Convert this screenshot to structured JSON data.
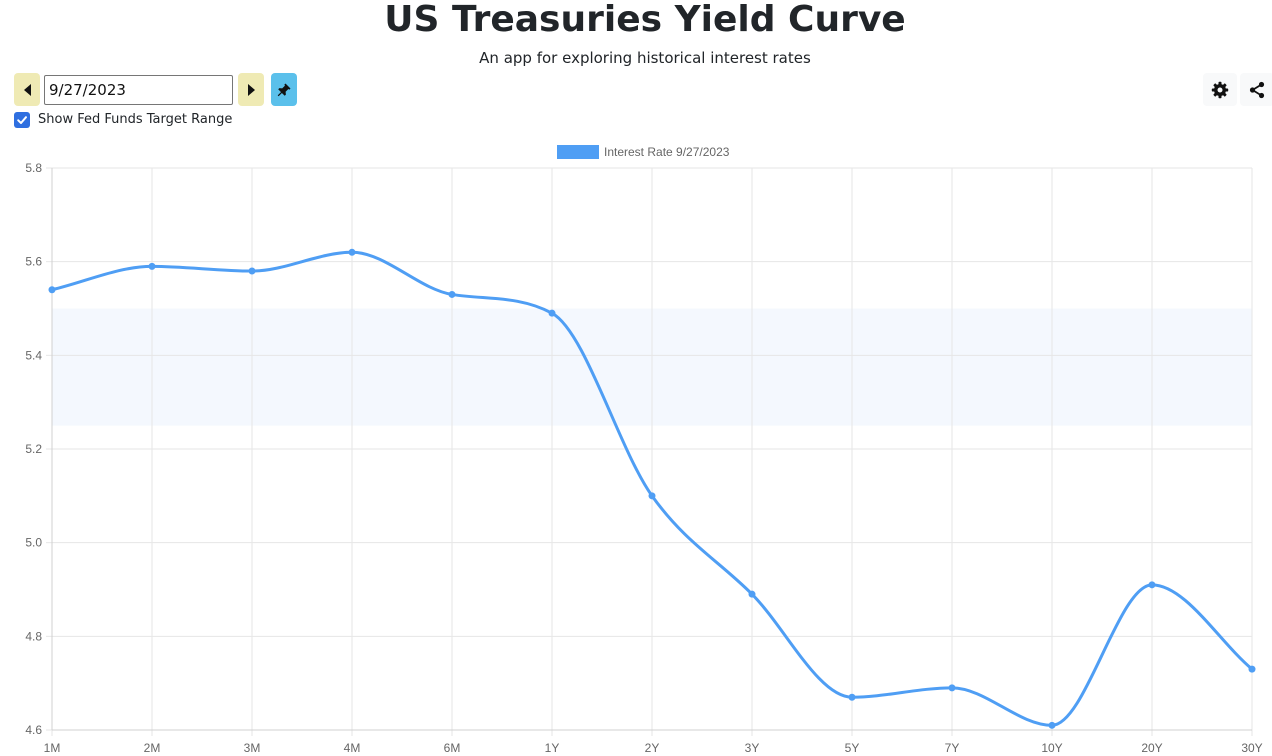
{
  "header": {
    "title": "US Treasuries Yield Curve",
    "subtitle": "An app for exploring historical interest rates"
  },
  "toolbar": {
    "date_value": "9/27/2023",
    "prev_icon": "caret-left-icon",
    "next_icon": "caret-right-icon",
    "pin_icon": "pin-icon",
    "settings_icon": "gear-icon",
    "share_icon": "share-icon",
    "show_fed_funds_label": "Show Fed Funds Target Range",
    "show_fed_funds_checked": true
  },
  "colors": {
    "line": "#4f9ef4",
    "band": "#f4f8fe",
    "nav_button": "#efeab4",
    "pin_button": "#5bc0eb",
    "checkbox": "#2f6fe0"
  },
  "chart_data": {
    "type": "line",
    "title": "",
    "legend": [
      "Interest Rate 9/27/2023"
    ],
    "legend_position": "top-center",
    "categories": [
      "1M",
      "2M",
      "3M",
      "4M",
      "6M",
      "1Y",
      "2Y",
      "3Y",
      "5Y",
      "7Y",
      "10Y",
      "20Y",
      "30Y"
    ],
    "series": [
      {
        "name": "Interest Rate 9/27/2023",
        "values": [
          5.54,
          5.59,
          5.58,
          5.62,
          5.53,
          5.49,
          5.1,
          4.89,
          4.67,
          4.69,
          4.61,
          4.91,
          4.73
        ]
      }
    ],
    "fed_funds_target_range": [
      5.25,
      5.5
    ],
    "ylim": [
      4.6,
      5.8
    ],
    "yticks": [
      4.6,
      4.8,
      5.0,
      5.2,
      5.4,
      5.6,
      5.8
    ],
    "ytick_labels": [
      "4.6",
      "4.8",
      "5.0",
      "5.2",
      "5.4",
      "5.6",
      "5.8"
    ],
    "grid": true,
    "smooth": true
  }
}
